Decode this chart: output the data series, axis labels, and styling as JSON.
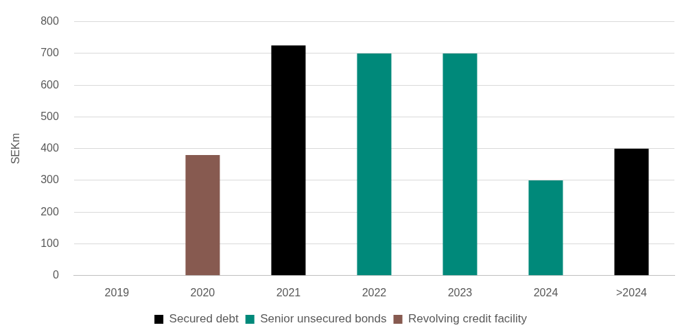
{
  "chart_data": {
    "type": "bar",
    "ylabel": "SEKm",
    "categories": [
      "2019",
      "2020",
      "2021",
      "2022",
      "2023",
      "2024",
      ">2024"
    ],
    "series": [
      {
        "name": "Secured debt",
        "color": "#000000",
        "values": [
          null,
          null,
          725,
          null,
          null,
          null,
          400
        ]
      },
      {
        "name": "Senior unsecured bonds",
        "color": "#00897a",
        "values": [
          null,
          null,
          null,
          700,
          700,
          300,
          null
        ]
      },
      {
        "name": "Revolving credit facility",
        "color": "#875a50",
        "values": [
          null,
          380,
          null,
          null,
          null,
          null,
          null
        ]
      }
    ],
    "stacked": true,
    "ylim": [
      0,
      800
    ],
    "yticks": [
      0,
      100,
      200,
      300,
      400,
      500,
      600,
      700,
      800
    ],
    "grid": "y",
    "legend": "bottom"
  }
}
